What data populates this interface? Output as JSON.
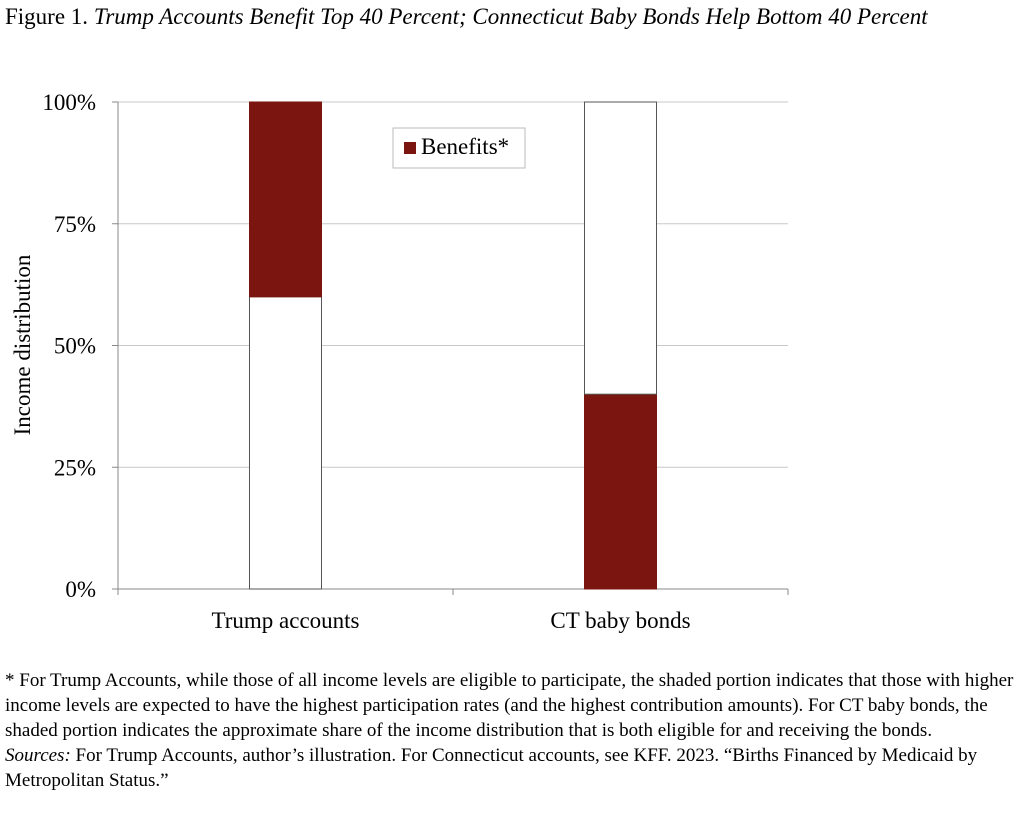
{
  "figure": {
    "label": "Figure 1.",
    "title": "Trump Accounts Benefit Top 40 Percent; Connecticut Baby Bonds Help Bottom 40 Percent"
  },
  "chart_data": {
    "type": "bar",
    "stacked": true,
    "ylabel": "Income distribution",
    "xlabel": "",
    "ylim": [
      0,
      100
    ],
    "yticks": [
      "0%",
      "25%",
      "50%",
      "75%",
      "100%"
    ],
    "grid": true,
    "legend_position": "top-center",
    "categories": [
      "Trump accounts",
      "CT baby bonds"
    ],
    "bars": [
      {
        "category": "Trump accounts",
        "segments": [
          {
            "from": 0,
            "to": 60,
            "series": "unshaded"
          },
          {
            "from": 60,
            "to": 100,
            "series": "Benefits*"
          }
        ]
      },
      {
        "category": "CT baby bonds",
        "segments": [
          {
            "from": 0,
            "to": 40,
            "series": "Benefits*"
          },
          {
            "from": 40,
            "to": 100,
            "series": "unshaded"
          }
        ]
      }
    ],
    "series": [
      {
        "name": "Benefits*",
        "color": "#7b1510"
      }
    ],
    "unshaded_color": "#ffffff"
  },
  "footnote": "* For Trump Accounts, while those of all income levels are eligible to participate, the shaded portion indicates that those with higher income levels are expected to have the highest participation rates (and the highest contribution amounts). For CT baby bonds, the shaded portion indicates the approximate share of the income distribution that is both eligible for and receiving the bonds.",
  "sources": {
    "label": "Sources:",
    "text": " For Trump Accounts, author’s illustration. For Connecticut accounts, see KFF. 2023. “Births Financed by Medicaid by Metropolitan Status.”"
  }
}
